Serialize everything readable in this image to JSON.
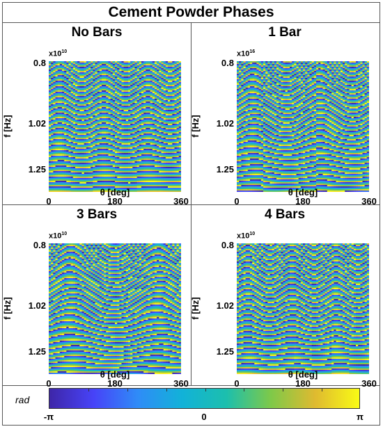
{
  "figure": {
    "title": "Cement Powder Phases",
    "colormap": [
      "#3e26a8",
      "#4743f8",
      "#2f8cf7",
      "#12b2d8",
      "#1cbfad",
      "#7ec949",
      "#dfba30",
      "#f9fb15"
    ]
  },
  "chart_data": [
    {
      "type": "heatmap",
      "title": "No Bars",
      "xlabel": "θ [deg]",
      "ylabel": "f [Hz]",
      "x_ticks": [
        "0",
        "180",
        "360"
      ],
      "y_ticks": [
        "0.8",
        "1.02",
        "1.25"
      ],
      "y_exponent": "x10",
      "y_exponent_power": "10",
      "xlim": [
        0,
        360
      ],
      "ylim": [
        0.8,
        1.25
      ],
      "value_range": [
        -3.1416,
        3.1416
      ],
      "pattern": {
        "fringe_rate": 26,
        "curvature": 0.05,
        "humps": 3,
        "disorder": 0.2,
        "steps": 6
      }
    },
    {
      "type": "heatmap",
      "title": "1 Bar",
      "xlabel": "θ [deg]",
      "ylabel": "f [Hz]",
      "x_ticks": [
        "0",
        "180",
        "360"
      ],
      "y_ticks": [
        "0.8",
        "1.02",
        "1.25"
      ],
      "y_exponent": "x10",
      "y_exponent_power": "16",
      "xlim": [
        0,
        360
      ],
      "ylim": [
        0.8,
        1.25
      ],
      "value_range": [
        -3.1416,
        3.1416
      ],
      "pattern": {
        "fringe_rate": 26,
        "curvature": 0.09,
        "humps": 2,
        "disorder": 0.55,
        "steps": 5
      }
    },
    {
      "type": "heatmap",
      "title": "3 Bars",
      "xlabel": "θ [deg]",
      "ylabel": "f [Hz]",
      "x_ticks": [
        "0",
        "180",
        "360"
      ],
      "y_ticks": [
        "0.8",
        "1.02",
        "1.25"
      ],
      "y_exponent": "x10",
      "y_exponent_power": "10",
      "xlim": [
        0,
        360
      ],
      "ylim": [
        0.8,
        1.25
      ],
      "value_range": [
        -3.1416,
        3.1416
      ],
      "pattern": {
        "fringe_rate": 26,
        "curvature": 0.12,
        "humps": 1.5,
        "disorder": 0.7,
        "steps": 4
      }
    },
    {
      "type": "heatmap",
      "title": "4 Bars",
      "xlabel": "θ [deg]",
      "ylabel": "f [Hz]",
      "x_ticks": [
        "0",
        "180",
        "360"
      ],
      "y_ticks": [
        "0.8",
        "1.02",
        "1.25"
      ],
      "y_exponent": "x10",
      "y_exponent_power": "10",
      "xlim": [
        0,
        360
      ],
      "ylim": [
        0.8,
        1.25
      ],
      "value_range": [
        -3.1416,
        3.1416
      ],
      "pattern": {
        "fringe_rate": 26,
        "curvature": 0.06,
        "humps": 3,
        "disorder": 0.3,
        "steps": 7
      }
    }
  ],
  "colorbar": {
    "label": "rad",
    "tick_labels": [
      "-π",
      "0",
      "π"
    ],
    "range": [
      -3.1416,
      3.1416
    ]
  }
}
